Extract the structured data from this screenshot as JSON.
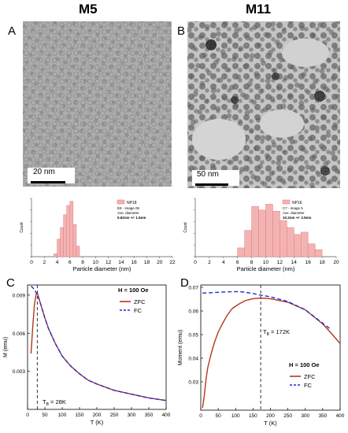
{
  "figure": {
    "col_titles": [
      "M5",
      "M11"
    ],
    "panels": {
      "A": {
        "letter": "A",
        "scale_bar": "20 nm"
      },
      "B": {
        "letter": "B",
        "scale_bar": "50 nm"
      },
      "C": {
        "letter": "C"
      },
      "D": {
        "letter": "D"
      }
    }
  },
  "chart_data": [
    {
      "id": "hist-M5",
      "type": "bar",
      "xlabel": "Particle diameter (nm)",
      "ylabel": "Count",
      "xlim": [
        0,
        22
      ],
      "xticks": [
        0,
        2,
        4,
        6,
        8,
        10,
        12,
        14,
        16,
        18,
        20,
        22
      ],
      "bin_width": 0.5,
      "x": [
        3.75,
        4.25,
        4.75,
        5.25,
        5.75,
        6.25,
        6.75,
        7.25
      ],
      "values": [
        0.05,
        0.3,
        0.5,
        0.72,
        0.88,
        0.95,
        0.55,
        0.18
      ],
      "color": "#f4b3b3",
      "legend": [
        "NP18",
        "E8 - image 05",
        "Ave. diameter",
        "5.62nm +/- 1.6nm"
      ]
    },
    {
      "id": "hist-M11",
      "type": "bar",
      "xlabel": "Particle diameter (nm)",
      "ylabel": "Count",
      "xlim": [
        0,
        20
      ],
      "xticks": [
        0,
        2,
        4,
        6,
        8,
        10,
        12,
        14,
        16,
        18,
        20
      ],
      "bin_width": 1,
      "x": [
        6.5,
        7.5,
        8.5,
        9.5,
        10.5,
        11.5,
        12.5,
        13.5,
        14.5,
        15.5,
        16.5,
        17.5
      ],
      "values": [
        0.15,
        0.45,
        0.86,
        0.8,
        0.9,
        0.78,
        0.62,
        0.5,
        0.38,
        0.42,
        0.22,
        0.12
      ],
      "color": "#f4b3b3",
      "legend": [
        "NP16",
        "C7 - image 5",
        "Ave. diameter",
        "10.2nm +/- 2.9nm"
      ]
    },
    {
      "id": "mag-M5",
      "type": "line",
      "xlabel": "T (K)",
      "ylabel": "M (emu)",
      "xlim": [
        0,
        400
      ],
      "ylim": [
        0,
        0.0098
      ],
      "xticks": [
        0,
        50,
        100,
        150,
        200,
        250,
        300,
        350,
        400
      ],
      "yticks": [
        0.003,
        0.006,
        0.009
      ],
      "ytick_labels": [
        "0.003",
        "0.006",
        "0.009"
      ],
      "field_label": "H = 100 Oe",
      "annotation": "T",
      "annotation_sub": "B",
      "annotation_rest": " = 28K",
      "vline_x": 28,
      "series": [
        {
          "name": "ZFC",
          "color": "#b5371b",
          "dash": "",
          "x": [
            10,
            15,
            20,
            25,
            28,
            32,
            40,
            50,
            60,
            80,
            100,
            125,
            150,
            175,
            200,
            250,
            300,
            350,
            400
          ],
          "y": [
            0.0044,
            0.0065,
            0.0083,
            0.0091,
            0.0092,
            0.0088,
            0.0081,
            0.0072,
            0.0064,
            0.0052,
            0.0042,
            0.0034,
            0.0028,
            0.0023,
            0.002,
            0.0015,
            0.0012,
            0.0009,
            0.0007
          ]
        },
        {
          "name": "FC",
          "color": "#1f2bd6",
          "dash": "5,3",
          "x": [
            10,
            15,
            20,
            25,
            28,
            32,
            40,
            50,
            60,
            80,
            100,
            125,
            150,
            175,
            200,
            250,
            300,
            350,
            400
          ],
          "y": [
            0.0097,
            0.0096,
            0.0094,
            0.0092,
            0.0091,
            0.0088,
            0.0081,
            0.0072,
            0.0064,
            0.0052,
            0.0042,
            0.0034,
            0.0028,
            0.0023,
            0.002,
            0.0015,
            0.0012,
            0.0009,
            0.0007
          ]
        }
      ]
    },
    {
      "id": "mag-M11",
      "type": "line",
      "xlabel": "T (K)",
      "ylabel": "Moment (emu)",
      "xlim": [
        0,
        400
      ],
      "ylim": [
        0.018,
        0.071
      ],
      "xticks": [
        0,
        50,
        100,
        150,
        200,
        250,
        300,
        350,
        400
      ],
      "yticks": [
        0.03,
        0.04,
        0.05,
        0.06,
        0.07
      ],
      "ytick_labels": [
        "0.03",
        "0.04",
        "0.05",
        "0.06",
        "0.07"
      ],
      "field_label": "H = 100 Oe",
      "annotation": "T",
      "annotation_sub": "B",
      "annotation_rest": " = 172K",
      "vline_x": 172,
      "series": [
        {
          "name": "ZFC",
          "color": "#b5371b",
          "dash": "",
          "x": [
            5,
            10,
            15,
            20,
            30,
            40,
            50,
            60,
            75,
            90,
            110,
            130,
            150,
            172,
            200,
            250,
            300,
            350,
            375,
            400
          ],
          "y": [
            0.019,
            0.024,
            0.031,
            0.036,
            0.042,
            0.047,
            0.051,
            0.054,
            0.058,
            0.061,
            0.063,
            0.0645,
            0.0652,
            0.0655,
            0.0652,
            0.0637,
            0.0605,
            0.0545,
            0.0505,
            0.0462
          ]
        },
        {
          "name": "FC",
          "color": "#1f2bd6",
          "dash": "5,3",
          "x": [
            5,
            25,
            50,
            75,
            100,
            125,
            150,
            172,
            200,
            250,
            300,
            350,
            375
          ],
          "y": [
            0.0676,
            0.0677,
            0.0679,
            0.0681,
            0.0682,
            0.068,
            0.0674,
            0.0667,
            0.066,
            0.064,
            0.0605,
            0.0548,
            0.052
          ]
        }
      ]
    }
  ]
}
